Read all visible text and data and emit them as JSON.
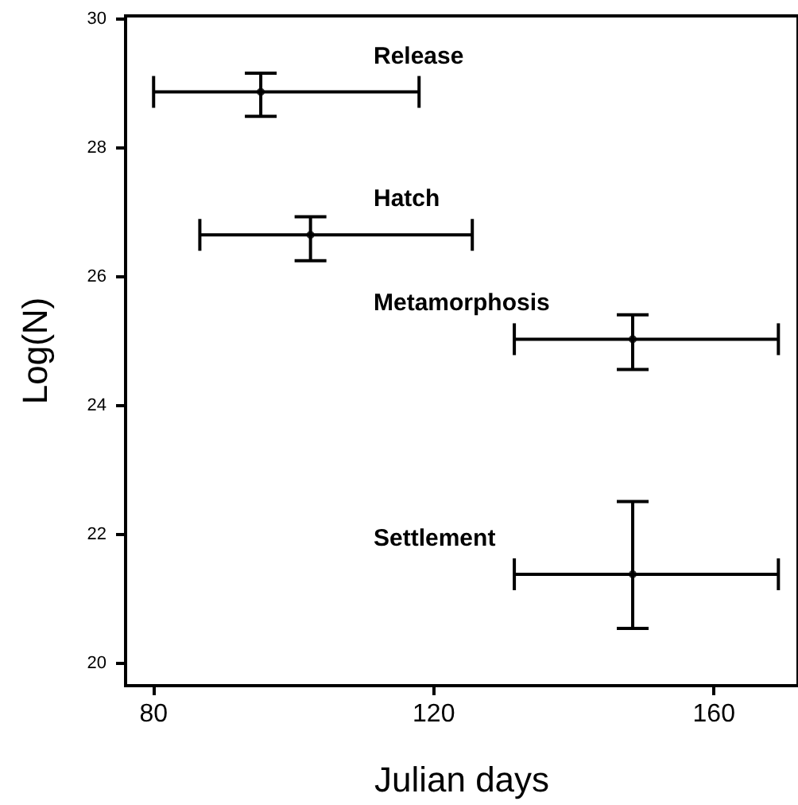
{
  "chart_data": {
    "type": "scatter",
    "xlabel": "Julian days",
    "ylabel": "Log(N)",
    "x": [
      95.3,
      102.4,
      148.4,
      148.4
    ],
    "values": [
      28.87,
      26.65,
      25.03,
      21.38
    ],
    "errors": [
      [
        28.49,
        29.16
      ],
      [
        26.25,
        26.93
      ],
      [
        24.56,
        25.41
      ],
      [
        20.54,
        22.51
      ]
    ],
    "xerrors": [
      [
        80.0,
        117.9
      ],
      [
        86.6,
        125.5
      ],
      [
        131.5,
        169.2
      ],
      [
        131.5,
        169.2
      ]
    ],
    "color": "#000000",
    "marker": "circle",
    "xlim": [
      76,
      172
    ],
    "xticks": [
      80,
      120,
      160
    ],
    "ylim": [
      19.65,
      30.05
    ],
    "yticks": [
      20,
      22,
      24,
      26,
      28,
      30
    ],
    "grid": false,
    "annotations": [
      "Release",
      "Hatch",
      "Metamorphosis",
      "Settlement"
    ]
  }
}
